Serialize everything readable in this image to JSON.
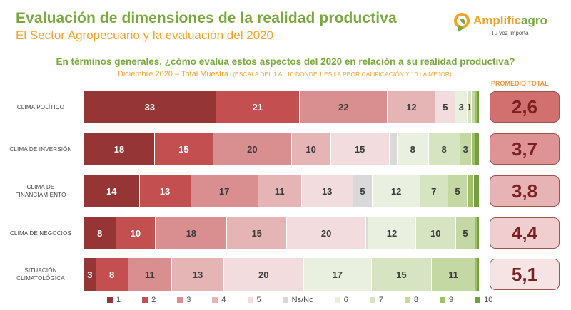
{
  "header": {
    "title": "Evaluación de dimensiones de la realidad productiva",
    "subtitle": "El Sector Agropecuario y la evaluación del 2020"
  },
  "logo": {
    "name_part1": "Amplific",
    "name_part2": "agro",
    "tagline": "Tu voz importa"
  },
  "question": "En términos generales, ¿cómo evalúa estos aspectos del 2020 en relación a su realidad productiva?",
  "meta": {
    "sample": "Diciembre 2020 – Total Muestra",
    "scale_note": "(ESCALA DEL 1 AL 10 DONDE 1 ES LA PEOR CALIFICACIÓN Y 10 LA MEJOR)."
  },
  "avg_header": "PROMEDIO TOTAL",
  "colors": {
    "1": "#963536",
    "2": "#c44f50",
    "3": "#d98e8f",
    "4": "#e5b5b6",
    "5": "#f2dcdd",
    "Ns/Nc": "#d9d9d9",
    "6": "#eaf0df",
    "7": "#d6e4c2",
    "8": "#c3d8a2",
    "9": "#9dc266",
    "10": "#76a03e"
  },
  "averages": [
    "2,6",
    "3,7",
    "3,8",
    "4,4",
    "5,1"
  ],
  "average_colors": [
    "#d26f6f",
    "#de9394",
    "#e8b3b4",
    "#f0cdce",
    "#f6e4e5"
  ],
  "chart_data": {
    "type": "bar",
    "orientation": "horizontal-stacked-100",
    "title": "En términos generales, ¿cómo evalúa estos aspectos del 2020 en relación a su realidad productiva?",
    "xlabel": "",
    "ylabel": "",
    "categories": [
      "CLIMA POLÍTICO",
      "CLIMA DE INVERSIÓN",
      "CLIMA DE FINANCIAMIENTO",
      "CLIMA DE NEGOCIOS",
      "SITUACIÓN CLIMATOLÓGICA"
    ],
    "category_lines": [
      [
        "CLIMA POLÍTICO"
      ],
      [
        "CLIMA DE INVERSIÓN"
      ],
      [
        "CLIMA DE",
        "FINANCIAMIENTO"
      ],
      [
        "CLIMA DE NEGOCIOS"
      ],
      [
        "SITUACIÓN",
        "CLIMATOLÓGICA"
      ]
    ],
    "legend": [
      "1",
      "2",
      "3",
      "4",
      "5",
      "Ns/Nc",
      "6",
      "7",
      "8",
      "9",
      "10"
    ],
    "legend_position": "bottom",
    "series": [
      {
        "name": "1",
        "values": [
          33,
          18,
          14,
          8,
          3
        ]
      },
      {
        "name": "2",
        "values": [
          21,
          15,
          13,
          10,
          8
        ]
      },
      {
        "name": "3",
        "values": [
          22,
          20,
          17,
          18,
          11
        ]
      },
      {
        "name": "4",
        "values": [
          12,
          10,
          11,
          15,
          13
        ]
      },
      {
        "name": "5",
        "values": [
          5,
          15,
          13,
          20,
          20
        ]
      },
      {
        "name": "Ns/Nc",
        "values": [
          0,
          2,
          5,
          0.5,
          0
        ]
      },
      {
        "name": "6",
        "values": [
          3,
          8,
          12,
          12,
          17
        ]
      },
      {
        "name": "7",
        "values": [
          1,
          8,
          7,
          10,
          15
        ]
      },
      {
        "name": "8",
        "values": [
          1,
          3,
          5,
          5,
          11
        ]
      },
      {
        "name": "9",
        "values": [
          0.5,
          1,
          1.5,
          0.5,
          0.5
        ]
      },
      {
        "name": "10",
        "values": [
          0.5,
          1,
          1.5,
          0.5,
          0.5
        ]
      }
    ],
    "labels_shown": [
      [
        "33",
        "21",
        "22",
        "12",
        "5",
        "",
        "3",
        "1",
        "",
        "",
        ""
      ],
      [
        "18",
        "15",
        "20",
        "10",
        "15",
        "",
        "8",
        "8",
        "3",
        "",
        ""
      ],
      [
        "14",
        "13",
        "17",
        "11",
        "13",
        "5",
        "12",
        "7",
        "5",
        "",
        ""
      ],
      [
        "8",
        "10",
        "18",
        "15",
        "20",
        "",
        "12",
        "10",
        "5",
        "",
        ""
      ],
      [
        "3",
        "8",
        "11",
        "13",
        "20",
        "",
        "17",
        "15",
        "11",
        "",
        ""
      ]
    ],
    "averages": [
      2.6,
      3.7,
      3.8,
      4.4,
      5.1
    ],
    "xlim": [
      0,
      100
    ],
    "grid": false
  }
}
